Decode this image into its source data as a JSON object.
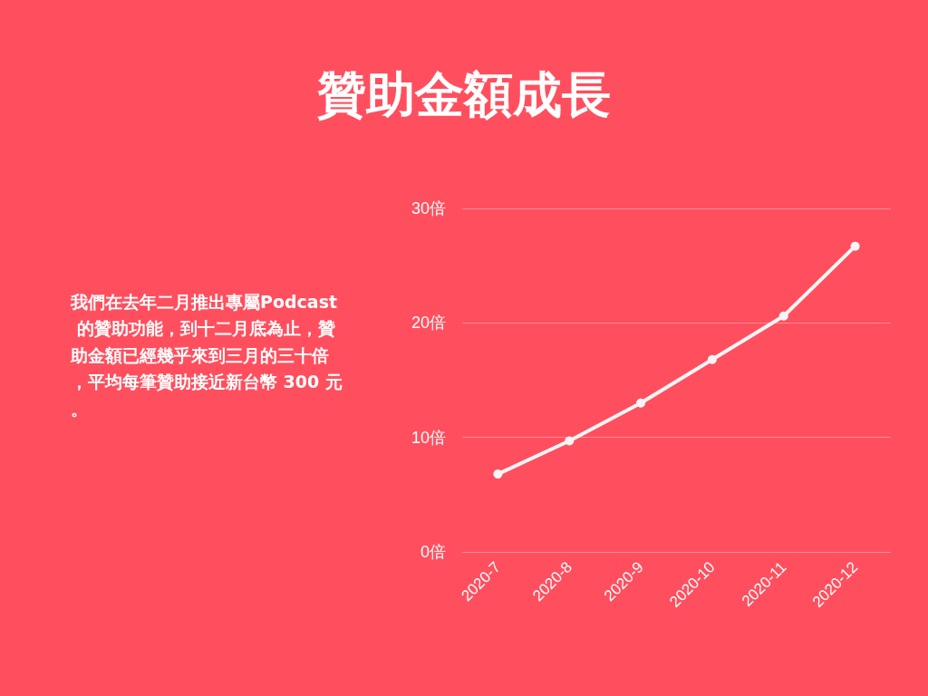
{
  "chart_data": {
    "type": "line",
    "title": "贊助金額成長",
    "annotations": [
      "我們在去年二月推出專屬Podcast 的贊助功能，到十二月底為止，贊助金額已經幾乎來到三月的三十倍，平均每筆贊助接近新台幣 300 元。"
    ],
    "categories": [
      "2020-7",
      "2020-8",
      "2020-9",
      "2020-10",
      "2020-11",
      "2020-12"
    ],
    "series": [
      {
        "color": "#f5f5f5",
        "values": [
          6.8,
          9.7,
          13.0,
          16.8,
          20.6,
          26.7
        ]
      }
    ],
    "ylim": [
      0,
      30
    ],
    "yticks": [
      {
        "value": 0,
        "label": "0倍"
      },
      {
        "value": 10,
        "label": "10倍"
      },
      {
        "value": 20,
        "label": "20倍"
      },
      {
        "value": 30,
        "label": "30倍"
      }
    ],
    "grid": "y",
    "marker": "circle",
    "line_style": "solid"
  }
}
